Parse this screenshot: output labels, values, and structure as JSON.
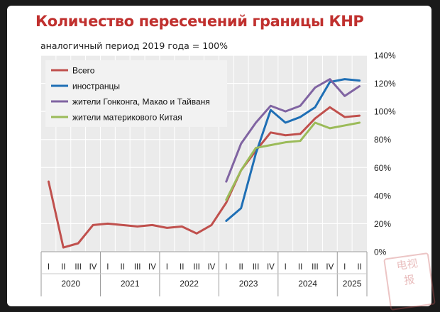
{
  "title": "Количество пересечений границы КНР",
  "subtitle": "аналогичный период 2019 года = 100%",
  "stamp_text": "电视\n报",
  "chart_data": {
    "type": "line",
    "title": "Количество пересечений границы КНР",
    "subtitle": "аналогичный период 2019 года = 100%",
    "quarters": [
      "I",
      "II",
      "III",
      "IV",
      "I",
      "II",
      "III",
      "IV",
      "I",
      "II",
      "III",
      "IV",
      "I",
      "II",
      "III",
      "IV",
      "I",
      "II",
      "III",
      "IV",
      "I",
      "II"
    ],
    "years": [
      {
        "label": "2020",
        "span": 4
      },
      {
        "label": "2021",
        "span": 4
      },
      {
        "label": "2022",
        "span": 4
      },
      {
        "label": "2023",
        "span": 4
      },
      {
        "label": "2024",
        "span": 4
      },
      {
        "label": "2025",
        "span": 2
      }
    ],
    "y_ticks": [
      "0%",
      "20%",
      "40%",
      "60%",
      "80%",
      "100%",
      "120%",
      "140%"
    ],
    "ylim": [
      0,
      140
    ],
    "y_axis_side": "right",
    "grid": true,
    "legend_position": "top-left",
    "series": [
      {
        "name": "Всего",
        "color": "#c0504d",
        "values": [
          50,
          3,
          6,
          19,
          20,
          19,
          18,
          19,
          17,
          18,
          13,
          19,
          35,
          58,
          72,
          85,
          83,
          84,
          95,
          103,
          96,
          97
        ]
      },
      {
        "name": "иностранцы",
        "color": "#1f6fb5",
        "values": [
          null,
          null,
          null,
          null,
          null,
          null,
          null,
          null,
          null,
          null,
          null,
          null,
          22,
          31,
          70,
          101,
          92,
          96,
          103,
          121,
          123,
          122
        ]
      },
      {
        "name": "жители Гонконга, Макао и Тайваня",
        "color": "#8064a2",
        "values": [
          null,
          null,
          null,
          null,
          null,
          null,
          null,
          null,
          null,
          null,
          null,
          null,
          50,
          77,
          92,
          104,
          100,
          104,
          117,
          123,
          111,
          118
        ]
      },
      {
        "name": "жители материкового Китая",
        "color": "#9bbb59",
        "values": [
          null,
          null,
          null,
          null,
          null,
          null,
          null,
          null,
          null,
          null,
          null,
          null,
          37,
          58,
          74,
          76,
          78,
          79,
          92,
          88,
          90,
          92
        ]
      }
    ]
  }
}
